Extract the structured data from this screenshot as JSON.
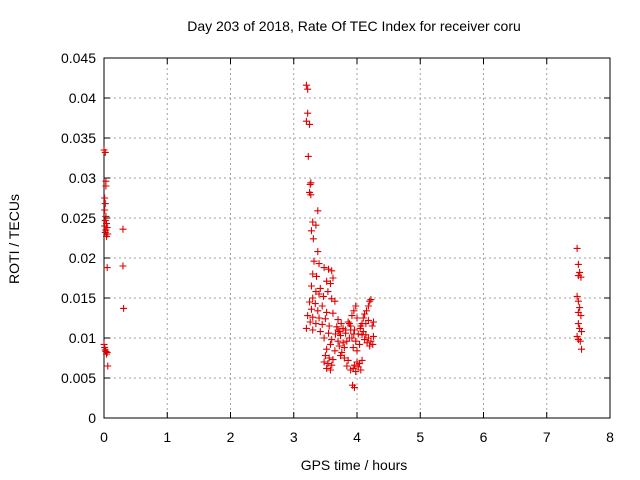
{
  "chart_data": {
    "type": "scatter",
    "title": "Day 203 of 2018, Rate Of TEC Index for receiver coru",
    "xlabel": "GPS time / hours",
    "ylabel": "ROTI / TECUs",
    "xlim": [
      0,
      8
    ],
    "ylim": [
      0,
      0.045
    ],
    "xticks": [
      0,
      1,
      2,
      3,
      4,
      5,
      6,
      7,
      8
    ],
    "xtick_labels": [
      "0",
      "1",
      "2",
      "3",
      "4",
      "5",
      "6",
      "7",
      "8"
    ],
    "yticks": [
      0,
      0.005,
      0.01,
      0.015,
      0.02,
      0.025,
      0.03,
      0.035,
      0.04,
      0.045
    ],
    "ytick_labels": [
      "0",
      "0.005",
      "0.01",
      "0.015",
      "0.02",
      "0.025",
      "0.03",
      "0.035",
      "0.04",
      "0.045"
    ],
    "grid": true,
    "marker": "+",
    "series": [
      {
        "name": "ROTI",
        "color": "#e00000",
        "points": [
          [
            0.0,
            0.0335
          ],
          [
            0.02,
            0.0332
          ],
          [
            0.03,
            0.0296
          ],
          [
            0.03,
            0.029
          ],
          [
            0.01,
            0.0275
          ],
          [
            0.02,
            0.0268
          ],
          [
            0.01,
            0.026
          ],
          [
            0.03,
            0.0252
          ],
          [
            0.02,
            0.0247
          ],
          [
            0.04,
            0.0243
          ],
          [
            0.01,
            0.024
          ],
          [
            0.05,
            0.0238
          ],
          [
            0.03,
            0.0235
          ],
          [
            0.02,
            0.0232
          ],
          [
            0.06,
            0.023
          ],
          [
            0.04,
            0.0227
          ],
          [
            0.05,
            0.0188
          ],
          [
            0.0,
            0.0092
          ],
          [
            0.01,
            0.0088
          ],
          [
            0.02,
            0.0085
          ],
          [
            0.03,
            0.0083
          ],
          [
            0.05,
            0.0082
          ],
          [
            0.04,
            0.008
          ],
          [
            0.06,
            0.0065
          ],
          [
            0.3,
            0.0236
          ],
          [
            0.3,
            0.019
          ],
          [
            0.31,
            0.0137
          ],
          [
            3.2,
            0.0416
          ],
          [
            3.22,
            0.0411
          ],
          [
            3.22,
            0.0381
          ],
          [
            3.2,
            0.0371
          ],
          [
            3.25,
            0.0367
          ],
          [
            3.23,
            0.0327
          ],
          [
            3.27,
            0.0294
          ],
          [
            3.26,
            0.0292
          ],
          [
            3.25,
            0.0282
          ],
          [
            3.27,
            0.0279
          ],
          [
            3.38,
            0.0259
          ],
          [
            3.3,
            0.0245
          ],
          [
            3.35,
            0.0241
          ],
          [
            3.28,
            0.0234
          ],
          [
            3.31,
            0.0224
          ],
          [
            3.38,
            0.0208
          ],
          [
            3.32,
            0.0196
          ],
          [
            3.4,
            0.0193
          ],
          [
            3.48,
            0.0188
          ],
          [
            3.55,
            0.0186
          ],
          [
            3.6,
            0.0184
          ],
          [
            3.3,
            0.018
          ],
          [
            3.36,
            0.0177
          ],
          [
            3.62,
            0.0175
          ],
          [
            3.52,
            0.0171
          ],
          [
            3.58,
            0.0168
          ],
          [
            3.28,
            0.0165
          ],
          [
            3.42,
            0.0162
          ],
          [
            3.54,
            0.0158
          ],
          [
            3.35,
            0.0158
          ],
          [
            3.4,
            0.0155
          ],
          [
            3.47,
            0.0152
          ],
          [
            3.3,
            0.015
          ],
          [
            3.6,
            0.0149
          ],
          [
            3.65,
            0.0146
          ],
          [
            3.25,
            0.0145
          ],
          [
            3.34,
            0.0143
          ],
          [
            3.45,
            0.014
          ],
          [
            3.28,
            0.0136
          ],
          [
            3.38,
            0.0134
          ],
          [
            3.52,
            0.0132
          ],
          [
            3.62,
            0.0131
          ],
          [
            3.22,
            0.0128
          ],
          [
            3.3,
            0.0126
          ],
          [
            3.4,
            0.0125
          ],
          [
            3.5,
            0.0124
          ],
          [
            3.7,
            0.0123
          ],
          [
            3.26,
            0.012
          ],
          [
            3.35,
            0.0118
          ],
          [
            3.45,
            0.0117
          ],
          [
            3.56,
            0.0115
          ],
          [
            3.68,
            0.0114
          ],
          [
            3.2,
            0.0112
          ],
          [
            3.3,
            0.011
          ],
          [
            3.42,
            0.0108
          ],
          [
            3.55,
            0.0106
          ],
          [
            3.66,
            0.0105
          ],
          [
            3.74,
            0.0103
          ],
          [
            3.48,
            0.01
          ],
          [
            3.6,
            0.0098
          ],
          [
            3.7,
            0.0096
          ],
          [
            3.78,
            0.0094
          ],
          [
            3.58,
            0.0092
          ],
          [
            3.72,
            0.009
          ],
          [
            3.8,
            0.0088
          ],
          [
            3.52,
            0.0086
          ],
          [
            3.65,
            0.0084
          ],
          [
            3.76,
            0.0082
          ],
          [
            3.5,
            0.0078
          ],
          [
            3.56,
            0.0075
          ],
          [
            3.62,
            0.0073
          ],
          [
            3.48,
            0.007
          ],
          [
            3.54,
            0.0068
          ],
          [
            3.6,
            0.0066
          ],
          [
            3.52,
            0.0062
          ],
          [
            3.58,
            0.006
          ],
          [
            3.74,
            0.0078
          ],
          [
            3.8,
            0.0075
          ],
          [
            3.86,
            0.0072
          ],
          [
            3.84,
            0.0065
          ],
          [
            3.9,
            0.006
          ],
          [
            3.72,
            0.0108
          ],
          [
            3.78,
            0.0112
          ],
          [
            3.82,
            0.0106
          ],
          [
            3.88,
            0.0118
          ],
          [
            3.92,
            0.0128
          ],
          [
            3.95,
            0.0134
          ],
          [
            3.98,
            0.014
          ],
          [
            4.0,
            0.0125
          ],
          [
            3.86,
            0.012
          ],
          [
            3.9,
            0.0115
          ],
          [
            3.96,
            0.011
          ],
          [
            4.02,
            0.0105
          ],
          [
            3.92,
            0.01
          ],
          [
            3.98,
            0.0096
          ],
          [
            4.04,
            0.0092
          ],
          [
            3.94,
            0.0088
          ],
          [
            4.0,
            0.0084
          ],
          [
            3.84,
            0.0096
          ],
          [
            3.88,
            0.01
          ],
          [
            3.93,
            0.0041
          ],
          [
            3.96,
            0.0038
          ],
          [
            3.94,
            0.0062
          ],
          [
            3.98,
            0.0058
          ],
          [
            4.02,
            0.0064
          ],
          [
            4.06,
            0.006
          ],
          [
            4.0,
            0.007
          ],
          [
            4.04,
            0.0068
          ],
          [
            4.08,
            0.0072
          ],
          [
            3.96,
            0.0066
          ],
          [
            4.05,
            0.0112
          ],
          [
            4.08,
            0.0118
          ],
          [
            4.1,
            0.0125
          ],
          [
            4.12,
            0.013
          ],
          [
            4.15,
            0.0134
          ],
          [
            4.18,
            0.014
          ],
          [
            4.2,
            0.0146
          ],
          [
            4.22,
            0.0148
          ],
          [
            4.1,
            0.0108
          ],
          [
            4.14,
            0.0104
          ],
          [
            4.18,
            0.01
          ],
          [
            4.22,
            0.0096
          ],
          [
            4.25,
            0.0092
          ],
          [
            4.12,
            0.0098
          ],
          [
            4.16,
            0.0094
          ],
          [
            4.2,
            0.009
          ],
          [
            4.24,
            0.0115
          ],
          [
            4.26,
            0.012
          ],
          [
            4.18,
            0.0122
          ],
          [
            4.14,
            0.0118
          ],
          [
            4.08,
            0.0104
          ],
          [
            4.26,
            0.0102
          ],
          [
            3.75,
            0.0118
          ],
          [
            3.7,
            0.011
          ],
          [
            3.82,
            0.011
          ],
          [
            3.9,
            0.011
          ],
          [
            3.95,
            0.0105
          ],
          [
            4.06,
            0.0115
          ],
          [
            7.48,
            0.0212
          ],
          [
            7.5,
            0.0192
          ],
          [
            7.52,
            0.0182
          ],
          [
            7.5,
            0.0178
          ],
          [
            7.54,
            0.0176
          ],
          [
            7.48,
            0.0152
          ],
          [
            7.5,
            0.0146
          ],
          [
            7.52,
            0.0138
          ],
          [
            7.5,
            0.0132
          ],
          [
            7.54,
            0.0128
          ],
          [
            7.5,
            0.0118
          ],
          [
            7.52,
            0.0112
          ],
          [
            7.55,
            0.0108
          ],
          [
            7.48,
            0.0102
          ],
          [
            7.5,
            0.0098
          ],
          [
            7.53,
            0.0096
          ],
          [
            7.55,
            0.0086
          ]
        ]
      }
    ]
  }
}
